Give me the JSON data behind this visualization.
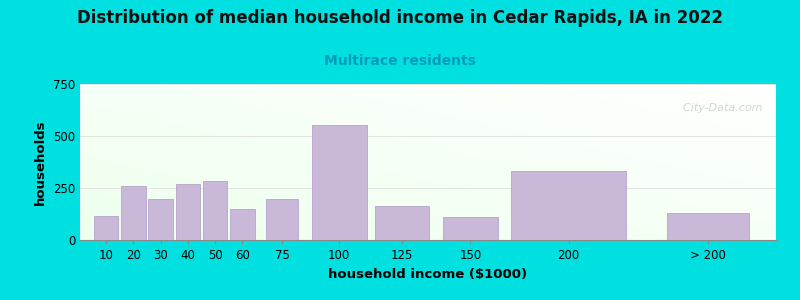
{
  "title": "Distribution of median household income in Cedar Rapids, IA in 2022",
  "subtitle": "Multirace residents",
  "xlabel": "household income ($1000)",
  "ylabel": "households",
  "bar_lefts": [
    5,
    15,
    25,
    35,
    45,
    55,
    68,
    85,
    108,
    133,
    158,
    215
  ],
  "bar_widths": [
    9,
    9,
    9,
    9,
    9,
    9,
    12,
    20,
    20,
    20,
    42,
    30
  ],
  "bar_heights": [
    115,
    260,
    195,
    270,
    285,
    150,
    195,
    555,
    165,
    110,
    330,
    130
  ],
  "bar_color": "#c9b8d8",
  "bar_edge_color": "#b5a5cc",
  "background_outer": "#00e0e0",
  "plot_bg_left": "#e8ffe8",
  "plot_bg_right": "#ffffff",
  "title_fontsize": 12,
  "subtitle_fontsize": 10,
  "subtitle_color": "#009bbb",
  "axis_label_fontsize": 9.5,
  "tick_fontsize": 8.5,
  "ylim": [
    0,
    750
  ],
  "yticks": [
    0,
    250,
    500,
    750
  ],
  "xtick_labels": [
    "10",
    "20",
    "30",
    "40",
    "50",
    "60",
    "75",
    "100",
    "125",
    "150",
    "200",
    "> 200"
  ],
  "xtick_positions": [
    9.5,
    19.5,
    29.5,
    39.5,
    49.5,
    59.5,
    74,
    95,
    118,
    143,
    179,
    230
  ],
  "watermark": "  City-Data.com",
  "watermark_color": "#b8b8b8",
  "watermark_alpha": 0.6,
  "grid_color": "#dddddd"
}
